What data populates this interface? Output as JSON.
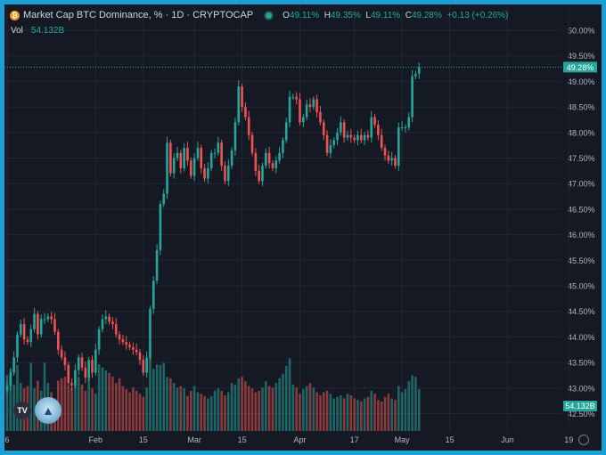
{
  "header": {
    "title": "Market Cap BTC Dominance, % · 1D · CRYPTOCAP",
    "coin_glyph": "₿",
    "o_label": "O",
    "o_value": "49.11%",
    "h_label": "H",
    "h_value": "49.35%",
    "l_label": "L",
    "l_value": "49.11%",
    "c_label": "C",
    "c_value": "49.28%",
    "change": "+0.13 (+0.26%)"
  },
  "volume": {
    "label": "Vol",
    "value": "54.132B"
  },
  "logos": {
    "tv": "TV"
  },
  "colors": {
    "up": "#26a69a",
    "down": "#ef5350",
    "background": "#151924",
    "frame": "#1b9fd6",
    "grid": "#232733"
  },
  "chart_data": {
    "type": "candlestick",
    "y_axis_unit": "%",
    "ylim": [
      42.2,
      50.1
    ],
    "y_ticks": [
      "50.00%",
      "49.50%",
      "49.00%",
      "48.50%",
      "48.00%",
      "47.50%",
      "47.00%",
      "46.50%",
      "46.00%",
      "45.50%",
      "45.00%",
      "44.50%",
      "44.00%",
      "43.50%",
      "43.00%",
      "42.50%"
    ],
    "x_ticks": [
      {
        "label": "6",
        "i": 0
      },
      {
        "label": "Feb",
        "i": 26
      },
      {
        "label": "15",
        "i": 40
      },
      {
        "label": "Mar",
        "i": 55
      },
      {
        "label": "15",
        "i": 69
      },
      {
        "label": "Apr",
        "i": 86
      },
      {
        "label": "17",
        "i": 102
      },
      {
        "label": "May",
        "i": 116
      },
      {
        "label": "15",
        "i": 130
      },
      {
        "label": "Jun",
        "i": 147
      },
      {
        "label": "19",
        "i": 165
      }
    ],
    "last_price": "49.28%",
    "last_value": 49.28,
    "last_volume_label": "54.132B",
    "volume_scale_max": 100,
    "close": [
      43.05,
      43.3,
      43.6,
      44.05,
      44.25,
      43.95,
      43.9,
      44.15,
      44.45,
      44.05,
      44.35,
      44.35,
      44.4,
      44.35,
      44.1,
      43.75,
      43.6,
      43.45,
      43.1,
      43.05,
      43.35,
      43.6,
      43.4,
      43.2,
      43.55,
      43.3,
      43.75,
      44.15,
      44.35,
      44.4,
      44.3,
      44.25,
      44.05,
      43.95,
      43.9,
      43.85,
      43.8,
      43.75,
      43.7,
      43.55,
      43.3,
      43.6,
      44.55,
      45.1,
      45.7,
      46.6,
      46.8,
      47.8,
      47.2,
      47.5,
      47.6,
      47.3,
      47.7,
      47.45,
      47.15,
      47.5,
      47.7,
      47.3,
      47.1,
      47.3,
      47.6,
      47.6,
      47.8,
      47.35,
      47.05,
      47.35,
      47.65,
      48.2,
      48.9,
      48.5,
      48.3,
      47.95,
      47.6,
      47.25,
      47.05,
      47.35,
      47.6,
      47.4,
      47.3,
      47.45,
      47.6,
      47.85,
      48.2,
      48.7,
      48.7,
      48.65,
      48.2,
      48.3,
      48.55,
      48.5,
      48.65,
      48.4,
      48.2,
      47.95,
      47.6,
      47.75,
      47.85,
      48.0,
      48.2,
      47.9,
      47.95,
      47.9,
      47.85,
      47.95,
      47.85,
      47.95,
      47.9,
      48.3,
      48.15,
      47.95,
      47.7,
      47.55,
      47.45,
      47.5,
      47.35,
      48.1,
      48.1,
      48.1,
      48.3,
      49.1,
      49.15,
      49.28
    ],
    "volume": [
      72,
      80,
      60,
      85,
      62,
      55,
      58,
      88,
      55,
      65,
      52,
      88,
      62,
      50,
      42,
      65,
      68,
      70,
      58,
      55,
      75,
      70,
      60,
      52,
      68,
      55,
      48,
      86,
      82,
      78,
      75,
      70,
      62,
      68,
      58,
      54,
      50,
      56,
      52,
      48,
      44,
      56,
      96,
      80,
      86,
      85,
      88,
      70,
      68,
      62,
      56,
      58,
      55,
      45,
      52,
      58,
      50,
      48,
      45,
      42,
      45,
      52,
      55,
      52,
      46,
      50,
      62,
      60,
      68,
      70,
      64,
      58,
      55,
      50,
      52,
      56,
      64,
      58,
      56,
      62,
      68,
      74,
      84,
      94,
      60,
      56,
      48,
      54,
      58,
      62,
      56,
      50,
      46,
      50,
      52,
      48,
      42,
      44,
      46,
      42,
      48,
      46,
      42,
      40,
      38,
      42,
      44,
      52,
      48,
      40,
      38,
      44,
      48,
      42,
      40,
      58,
      50,
      54,
      64,
      72,
      70,
      54
    ]
  }
}
